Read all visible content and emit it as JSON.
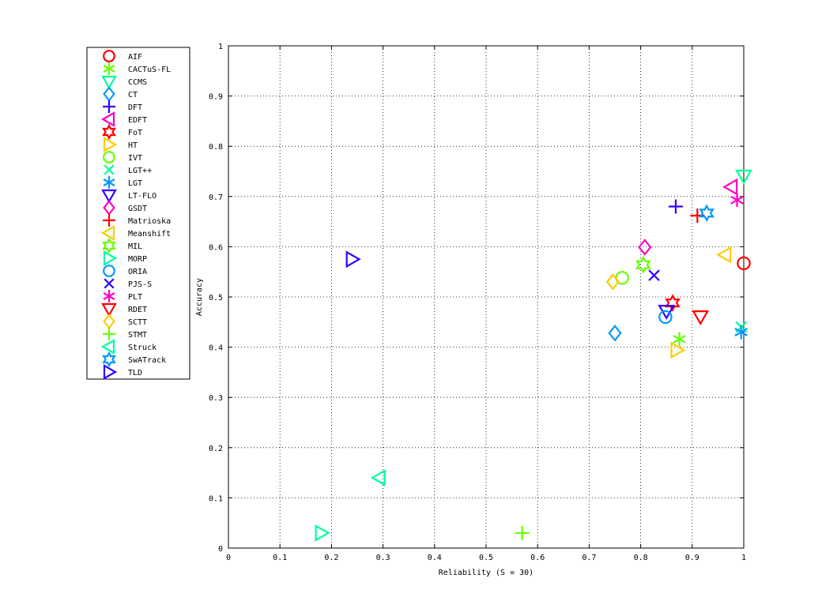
{
  "chart_data": {
    "type": "scatter",
    "title": "",
    "xlabel": "Reliability (S = 30)",
    "ylabel": "Accuracy",
    "xlim": [
      0,
      1
    ],
    "ylim": [
      0,
      1
    ],
    "xticks": [
      "0",
      "0.1",
      "0.2",
      "0.3",
      "0.4",
      "0.5",
      "0.6",
      "0.7",
      "0.8",
      "0.9",
      "1"
    ],
    "yticks": [
      "0",
      "0.1",
      "0.2",
      "0.3",
      "0.4",
      "0.5",
      "0.6",
      "0.7",
      "0.8",
      "0.9",
      "1"
    ],
    "grid": true,
    "legend_placement": "outside-left",
    "series": [
      {
        "name": "AIF",
        "marker": "circle",
        "color": "#ff0000",
        "x": 1.0,
        "y": 0.567
      },
      {
        "name": "CACTuS-FL",
        "marker": "asterisk",
        "color": "#66ff00",
        "x": 0.875,
        "y": 0.416
      },
      {
        "name": "CCMS",
        "marker": "triangle-down",
        "color": "#00ff99",
        "x": 1.0,
        "y": 0.741
      },
      {
        "name": "CT",
        "marker": "diamond",
        "color": "#0099ff",
        "x": 0.75,
        "y": 0.428
      },
      {
        "name": "DFT",
        "marker": "plus",
        "color": "#3300ff",
        "x": 0.868,
        "y": 0.68
      },
      {
        "name": "EDFT",
        "marker": "triangle-left",
        "color": "#ff00cc",
        "x": 0.976,
        "y": 0.719
      },
      {
        "name": "FoT",
        "marker": "hexagram",
        "color": "#ff0000",
        "x": 0.862,
        "y": 0.488
      },
      {
        "name": "HT",
        "marker": "triangle-right",
        "color": "#ffcc00",
        "x": 0.87,
        "y": 0.394
      },
      {
        "name": "IVT",
        "marker": "circle",
        "color": "#66ff00",
        "x": 0.764,
        "y": 0.538
      },
      {
        "name": "LGT++",
        "marker": "cross",
        "color": "#00ff99",
        "x": 0.995,
        "y": 0.44
      },
      {
        "name": "LGT",
        "marker": "asterisk",
        "color": "#0099ff",
        "x": 0.995,
        "y": 0.43
      },
      {
        "name": "LT-FLO",
        "marker": "triangle-down",
        "color": "#3300ff",
        "x": 0.85,
        "y": 0.472
      },
      {
        "name": "GSDT",
        "marker": "diamond",
        "color": "#ff00cc",
        "x": 0.808,
        "y": 0.599
      },
      {
        "name": "Matrioska",
        "marker": "plus",
        "color": "#ff0000",
        "x": 0.91,
        "y": 0.662
      },
      {
        "name": "Meanshift",
        "marker": "triangle-left",
        "color": "#ffcc00",
        "x": 0.964,
        "y": 0.584
      },
      {
        "name": "MIL",
        "marker": "hexagram",
        "color": "#66ff00",
        "x": 0.805,
        "y": 0.564
      },
      {
        "name": "MORP",
        "marker": "triangle-right",
        "color": "#00ff99",
        "x": 0.18,
        "y": 0.03
      },
      {
        "name": "ORIA",
        "marker": "circle",
        "color": "#0099ff",
        "x": 0.848,
        "y": 0.46
      },
      {
        "name": "PJS-S",
        "marker": "cross",
        "color": "#3300ff",
        "x": 0.826,
        "y": 0.543
      },
      {
        "name": "PLT",
        "marker": "asterisk",
        "color": "#ff00cc",
        "x": 0.987,
        "y": 0.693
      },
      {
        "name": "RDET",
        "marker": "triangle-down",
        "color": "#ff0000",
        "x": 0.916,
        "y": 0.461
      },
      {
        "name": "SCTT",
        "marker": "diamond",
        "color": "#ffcc00",
        "x": 0.746,
        "y": 0.53
      },
      {
        "name": "STMT",
        "marker": "plus",
        "color": "#66ff00",
        "x": 0.57,
        "y": 0.03
      },
      {
        "name": "Struck",
        "marker": "triangle-left",
        "color": "#00ff99",
        "x": 0.293,
        "y": 0.14
      },
      {
        "name": "SwATrack",
        "marker": "hexagram",
        "color": "#0099ff",
        "x": 0.928,
        "y": 0.667
      },
      {
        "name": "TLD",
        "marker": "triangle-right",
        "color": "#3300ff",
        "x": 0.24,
        "y": 0.575
      }
    ]
  }
}
